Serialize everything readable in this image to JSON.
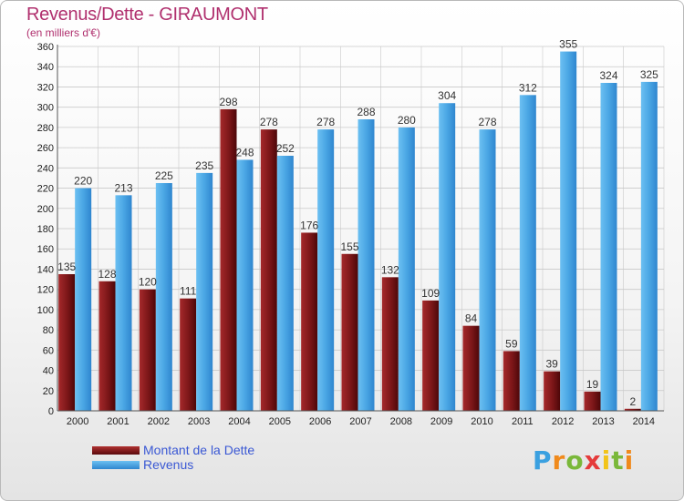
{
  "header": {
    "title": "Revenus/Dette - GIRAUMONT",
    "subtitle": "(en milliers d'€)"
  },
  "logo": {
    "text": "Proxiti"
  },
  "colors": {
    "dette": "#7b1618",
    "revenus": "#3e96da",
    "axis_text": "#222222",
    "grid": "#c9c9c9"
  },
  "chart_data": {
    "type": "bar",
    "title": "Revenus/Dette - GIRAUMONT",
    "subtitle": "(en milliers d'€)",
    "categories": [
      "2000",
      "2001",
      "2002",
      "2003",
      "2004",
      "2005",
      "2006",
      "2007",
      "2008",
      "2009",
      "2010",
      "2011",
      "2012",
      "2013",
      "2014"
    ],
    "series": [
      {
        "name": "Montant de la Dette",
        "values": [
          135,
          128,
          120,
          111,
          298,
          278,
          176,
          155,
          132,
          109,
          84,
          59,
          39,
          19,
          2
        ]
      },
      {
        "name": "Revenus",
        "values": [
          220,
          213,
          225,
          235,
          248,
          252,
          278,
          288,
          280,
          304,
          278,
          312,
          355,
          324,
          325
        ]
      }
    ],
    "ylim": [
      0,
      360
    ],
    "ytick_step": 20,
    "grid": true,
    "legend_position": "bottom-left"
  }
}
